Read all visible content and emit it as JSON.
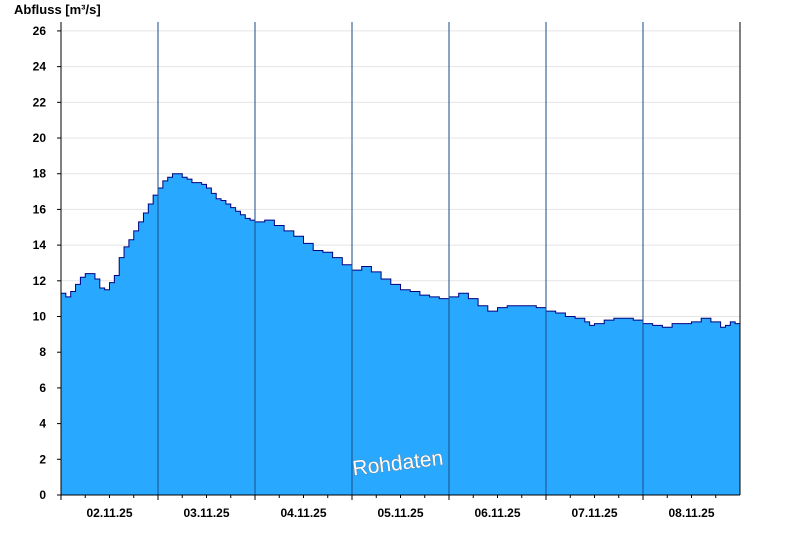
{
  "chart_data": {
    "type": "area",
    "ylabel": "Abfluss [m³/s]",
    "xlabel": "",
    "ylim": [
      0,
      26.5
    ],
    "yticks": [
      "0",
      "2",
      "4",
      "6",
      "8",
      "10",
      "12",
      "14",
      "16",
      "18",
      "20",
      "22",
      "24",
      "26"
    ],
    "xlim": [
      0,
      7
    ],
    "day_boundaries": [
      "02.11.25",
      "03.11.25",
      "04.11.25",
      "05.11.25",
      "06.11.25",
      "07.11.25",
      "08.11.25"
    ],
    "xtick_labels": [
      "02.11.25",
      "03.11.25",
      "04.11.25",
      "05.11.25",
      "06.11.25",
      "07.11.25",
      "08.11.25"
    ],
    "grid": true,
    "watermark": "Rohdaten",
    "fill_color": "#29a8ff",
    "line_color": "#000080",
    "series": [
      {
        "x": [
          0,
          0.05,
          0.1,
          0.15,
          0.2,
          0.25,
          0.3,
          0.35,
          0.4,
          0.45,
          0.5,
          0.55,
          0.6,
          0.65,
          0.7,
          0.75,
          0.8,
          0.85,
          0.9,
          0.95,
          1.0,
          1.05,
          1.1,
          1.15,
          1.2,
          1.25,
          1.3,
          1.35,
          1.4,
          1.45,
          1.5,
          1.55,
          1.6,
          1.65,
          1.7,
          1.75,
          1.8,
          1.85,
          1.9,
          1.95,
          2.0,
          2.1,
          2.2,
          2.3,
          2.4,
          2.5,
          2.6,
          2.7,
          2.8,
          2.9,
          3.0,
          3.1,
          3.2,
          3.3,
          3.4,
          3.5,
          3.6,
          3.7,
          3.8,
          3.9,
          4.0,
          4.1,
          4.2,
          4.3,
          4.4,
          4.5,
          4.6,
          4.7,
          4.8,
          4.9,
          5.0,
          5.1,
          5.2,
          5.3,
          5.4,
          5.45,
          5.5,
          5.6,
          5.7,
          5.8,
          5.9,
          6.0,
          6.1,
          6.2,
          6.3,
          6.4,
          6.5,
          6.6,
          6.7,
          6.8,
          6.85,
          6.9,
          6.95,
          7.0
        ],
        "values": [
          11.3,
          11.1,
          11.4,
          11.8,
          12.2,
          12.4,
          12.4,
          12.1,
          11.6,
          11.5,
          11.9,
          12.3,
          13.3,
          13.9,
          14.3,
          14.8,
          15.3,
          15.8,
          16.3,
          16.8,
          17.2,
          17.6,
          17.8,
          18.0,
          18.0,
          17.8,
          17.7,
          17.5,
          17.5,
          17.4,
          17.2,
          16.9,
          16.6,
          16.5,
          16.3,
          16.1,
          15.9,
          15.7,
          15.5,
          15.4,
          15.3,
          15.4,
          15.1,
          14.8,
          14.5,
          14.1,
          13.7,
          13.6,
          13.3,
          12.9,
          12.6,
          12.8,
          12.5,
          12.1,
          11.8,
          11.5,
          11.4,
          11.2,
          11.1,
          11.0,
          11.1,
          11.3,
          11.0,
          10.6,
          10.3,
          10.5,
          10.6,
          10.6,
          10.6,
          10.5,
          10.3,
          10.2,
          10.0,
          9.9,
          9.7,
          9.5,
          9.6,
          9.8,
          9.9,
          9.9,
          9.8,
          9.6,
          9.5,
          9.4,
          9.6,
          9.6,
          9.7,
          9.9,
          9.7,
          9.4,
          9.5,
          9.7,
          9.6,
          9.5
        ]
      }
    ]
  }
}
